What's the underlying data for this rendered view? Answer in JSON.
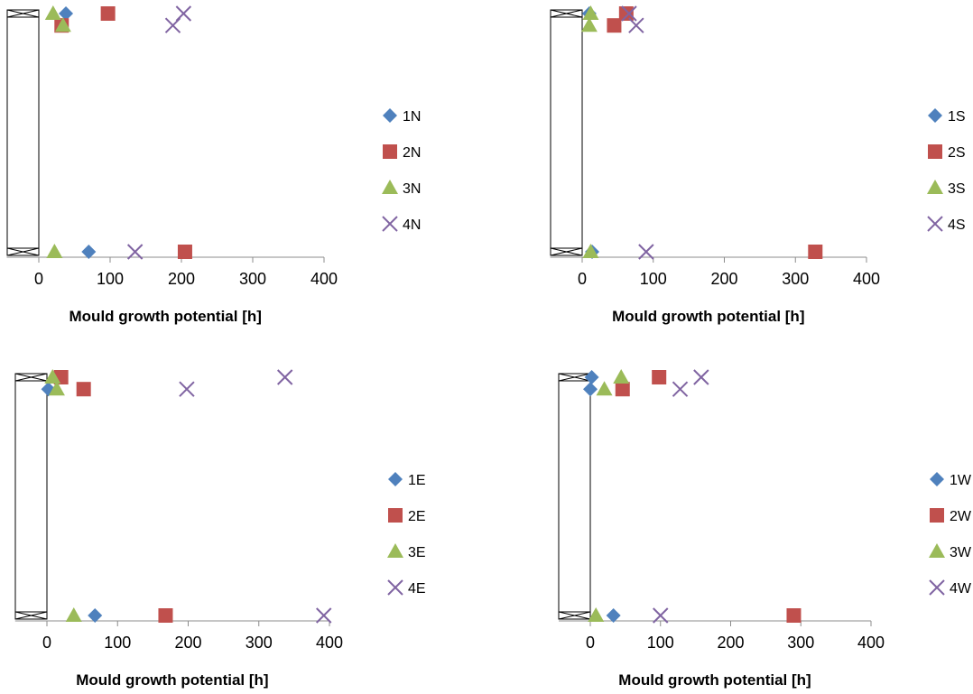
{
  "chart_data": [
    {
      "id": "N",
      "type": "scatter",
      "xlabel": "Mould growth potential [h]",
      "xlim": [
        -45,
        400
      ],
      "xticks": [
        0,
        100,
        200,
        300,
        400
      ],
      "xtick_labels": [
        "0",
        "100",
        "200",
        "300",
        "400"
      ],
      "ylim": [
        0,
        1
      ],
      "grid": false,
      "legend": "right",
      "series": [
        {
          "name": "1N",
          "marker": "diamond",
          "color": "#4f81bd",
          "points": [
            [
              38,
              1.0
            ],
            [
              70,
              0.0
            ]
          ]
        },
        {
          "name": "2N",
          "marker": "square",
          "color": "#c0504d",
          "points": [
            [
              32,
              0.95
            ],
            [
              97,
              1.0
            ],
            [
              205,
              0.0
            ]
          ]
        },
        {
          "name": "3N",
          "marker": "triangle",
          "color": "#9bbb59",
          "points": [
            [
              20,
              1.0
            ],
            [
              34,
              0.95
            ],
            [
              22,
              0.0
            ]
          ]
        },
        {
          "name": "4N",
          "marker": "x",
          "color": "#8064a2",
          "points": [
            [
              188,
              0.95
            ],
            [
              203,
              1.0
            ],
            [
              135,
              0.0
            ]
          ]
        }
      ]
    },
    {
      "id": "S",
      "type": "scatter",
      "xlabel": "Mould growth potential [h]",
      "xlim": [
        -45,
        400
      ],
      "xticks": [
        0,
        100,
        200,
        300,
        400
      ],
      "xtick_labels": [
        "0",
        "100",
        "200",
        "300",
        "400"
      ],
      "ylim": [
        0,
        1
      ],
      "grid": false,
      "legend": "right",
      "series": [
        {
          "name": "1S",
          "marker": "diamond",
          "color": "#4f81bd",
          "points": [
            [
              10,
              1.0
            ],
            [
              14,
              0.0
            ]
          ]
        },
        {
          "name": "2S",
          "marker": "square",
          "color": "#c0504d",
          "points": [
            [
              45,
              0.95
            ],
            [
              62,
              1.0
            ],
            [
              328,
              0.0
            ]
          ]
        },
        {
          "name": "3S",
          "marker": "triangle",
          "color": "#9bbb59",
          "points": [
            [
              10,
              0.95
            ],
            [
              12,
              1.0
            ],
            [
              12,
              0.0
            ]
          ]
        },
        {
          "name": "4S",
          "marker": "x",
          "color": "#8064a2",
          "points": [
            [
              66,
              1.0
            ],
            [
              76,
              0.95
            ],
            [
              90,
              0.0
            ]
          ]
        }
      ]
    },
    {
      "id": "E",
      "type": "scatter",
      "xlabel": "Mould growth potential [h]",
      "xlim": [
        -45,
        400
      ],
      "xticks": [
        0,
        100,
        200,
        300,
        400
      ],
      "xtick_labels": [
        "0",
        "100",
        "200",
        "300",
        "400"
      ],
      "ylim": [
        0,
        1
      ],
      "grid": false,
      "legend": "right",
      "series": [
        {
          "name": "1E",
          "marker": "diamond",
          "color": "#4f81bd",
          "points": [
            [
              2,
              0.95
            ],
            [
              68,
              0.0
            ]
          ]
        },
        {
          "name": "2E",
          "marker": "square",
          "color": "#c0504d",
          "points": [
            [
              20,
              1.0
            ],
            [
              52,
              0.95
            ],
            [
              168,
              0.0
            ]
          ]
        },
        {
          "name": "3E",
          "marker": "triangle",
          "color": "#9bbb59",
          "points": [
            [
              8,
              1.0
            ],
            [
              14,
              0.95
            ],
            [
              38,
              0.0
            ]
          ]
        },
        {
          "name": "4E",
          "marker": "x",
          "color": "#8064a2",
          "points": [
            [
              198,
              0.95
            ],
            [
              337,
              1.0
            ],
            [
              392,
              0.0
            ]
          ]
        }
      ]
    },
    {
      "id": "W",
      "type": "scatter",
      "xlabel": "Mould growth potential [h]",
      "xlim": [
        -45,
        400
      ],
      "xticks": [
        0,
        100,
        200,
        300,
        400
      ],
      "xtick_labels": [
        "0",
        "100",
        "200",
        "300",
        "400"
      ],
      "ylim": [
        0,
        1
      ],
      "grid": false,
      "legend": "right",
      "series": [
        {
          "name": "1W",
          "marker": "diamond",
          "color": "#4f81bd",
          "points": [
            [
              2,
              1.0
            ],
            [
              0,
              0.95
            ],
            [
              33,
              0.0
            ]
          ]
        },
        {
          "name": "2W",
          "marker": "square",
          "color": "#c0504d",
          "points": [
            [
              46,
              0.95
            ],
            [
              98,
              1.0
            ],
            [
              290,
              0.0
            ]
          ]
        },
        {
          "name": "3W",
          "marker": "triangle",
          "color": "#9bbb59",
          "points": [
            [
              20,
              0.95
            ],
            [
              44,
              1.0
            ],
            [
              8,
              0.0
            ]
          ]
        },
        {
          "name": "4W",
          "marker": "x",
          "color": "#8064a2",
          "points": [
            [
              128,
              0.95
            ],
            [
              158,
              1.0
            ],
            [
              100,
              0.0
            ]
          ]
        }
      ]
    }
  ]
}
